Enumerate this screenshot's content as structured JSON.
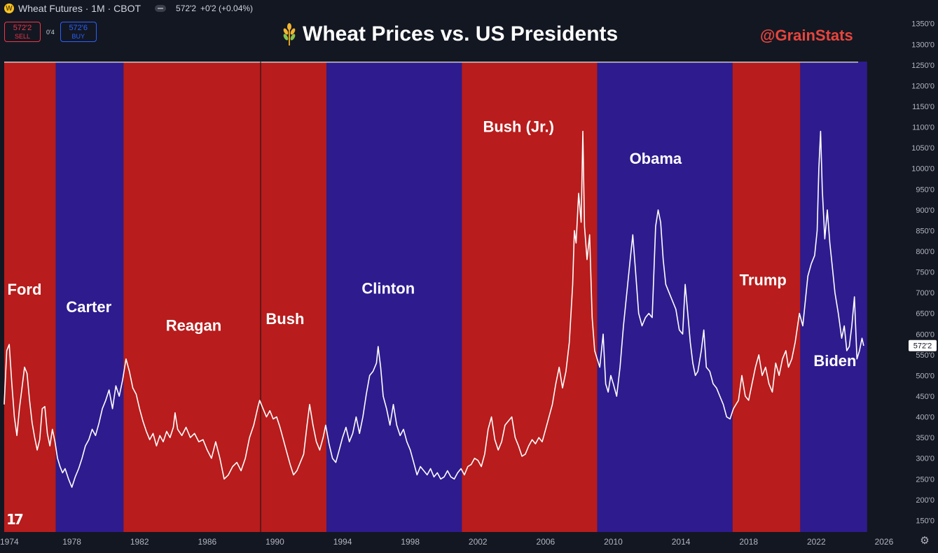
{
  "header": {
    "instrument": "Wheat Futures · 1M · CBOT",
    "coin_glyph": "W",
    "last_price": "572'2",
    "change": "+0'2 (+0.04%)"
  },
  "trade_panel": {
    "sell_price": "572'2",
    "sell_label": "SELL",
    "spread": "0'4",
    "buy_price": "572'6",
    "buy_label": "BUY"
  },
  "watermark": {
    "handle": "@GrainStats",
    "logo": "17"
  },
  "colors": {
    "background": "#131722",
    "republican": "#b81c1c",
    "democrat": "#2e1b8e",
    "price_line": "#ffffff",
    "handle": "#e8453c"
  },
  "chart_data": {
    "type": "line",
    "title": "Wheat Prices vs. US Presidents",
    "title_icon": "wheat-icon",
    "series_name": "Wheat Futures",
    "xlabel": "",
    "ylabel": "",
    "xlim": [
      1974,
      2026.5
    ],
    "ylim": [
      100,
      1380
    ],
    "x_ticks": [
      {
        "value": 1974,
        "label": "1974"
      },
      {
        "value": 1978,
        "label": "1978"
      },
      {
        "value": 1982,
        "label": "1982"
      },
      {
        "value": 1986,
        "label": "1986"
      },
      {
        "value": 1990,
        "label": "1990"
      },
      {
        "value": 1994,
        "label": "1994"
      },
      {
        "value": 1998,
        "label": "1998"
      },
      {
        "value": 2002,
        "label": "2002"
      },
      {
        "value": 2006,
        "label": "2006"
      },
      {
        "value": 2010,
        "label": "2010"
      },
      {
        "value": 2014,
        "label": "2014"
      },
      {
        "value": 2018,
        "label": "2018"
      },
      {
        "value": 2022,
        "label": "2022"
      },
      {
        "value": 2026,
        "label": "2026"
      }
    ],
    "y_ticks": [
      {
        "value": 150,
        "label": "150'0"
      },
      {
        "value": 200,
        "label": "200'0"
      },
      {
        "value": 250,
        "label": "250'0"
      },
      {
        "value": 300,
        "label": "300'0"
      },
      {
        "value": 350,
        "label": "350'0"
      },
      {
        "value": 400,
        "label": "400'0"
      },
      {
        "value": 450,
        "label": "450'0"
      },
      {
        "value": 500,
        "label": "500'0"
      },
      {
        "value": 550,
        "label": "550'0"
      },
      {
        "value": 600,
        "label": "600'0"
      },
      {
        "value": 650,
        "label": "650'0"
      },
      {
        "value": 700,
        "label": "700'0"
      },
      {
        "value": 750,
        "label": "750'0"
      },
      {
        "value": 800,
        "label": "800'0"
      },
      {
        "value": 850,
        "label": "850'0"
      },
      {
        "value": 900,
        "label": "900'0"
      },
      {
        "value": 950,
        "label": "950'0"
      },
      {
        "value": 1000,
        "label": "1000'0"
      },
      {
        "value": 1050,
        "label": "1050'0"
      },
      {
        "value": 1100,
        "label": "1100'0"
      },
      {
        "value": 1150,
        "label": "1150'0"
      },
      {
        "value": 1200,
        "label": "1200'0"
      },
      {
        "value": 1250,
        "label": "1250'0"
      },
      {
        "value": 1300,
        "label": "1300'0"
      },
      {
        "value": 1350,
        "label": "1350'0"
      }
    ],
    "last_value": 572.25,
    "last_label": "572'2",
    "presidents": [
      {
        "name": "Ford",
        "party": "R",
        "start": 1974.0,
        "end": 1977.05,
        "label_x": 1975.2,
        "label_y": 695
      },
      {
        "name": "Carter",
        "party": "D",
        "start": 1977.05,
        "end": 1981.05,
        "label_x": 1979.0,
        "label_y": 653
      },
      {
        "name": "Reagan",
        "party": "R",
        "start": 1981.05,
        "end": 1989.05,
        "label_x": 1985.2,
        "label_y": 608
      },
      {
        "name": "Bush",
        "party": "R",
        "start": 1989.05,
        "end": 1993.05,
        "label_x": 1990.6,
        "label_y": 624
      },
      {
        "name": "Clinton",
        "party": "D",
        "start": 1993.05,
        "end": 2001.05,
        "label_x": 1996.7,
        "label_y": 698
      },
      {
        "name": "Bush (Jr.)",
        "party": "R",
        "start": 2001.05,
        "end": 2009.05,
        "label_x": 2004.4,
        "label_y": 1088
      },
      {
        "name": "Obama",
        "party": "D",
        "start": 2009.05,
        "end": 2017.05,
        "label_x": 2012.5,
        "label_y": 1011
      },
      {
        "name": "Trump",
        "party": "R",
        "start": 2017.05,
        "end": 2021.05,
        "label_x": 2018.85,
        "label_y": 718
      },
      {
        "name": "Biden",
        "party": "D",
        "start": 2021.05,
        "end": 2025.0,
        "label_x": 2023.1,
        "label_y": 523
      }
    ],
    "price": [
      [
        1974.0,
        430
      ],
      [
        1974.15,
        560
      ],
      [
        1974.3,
        575
      ],
      [
        1974.45,
        480
      ],
      [
        1974.6,
        400
      ],
      [
        1974.75,
        355
      ],
      [
        1974.9,
        420
      ],
      [
        1975.05,
        470
      ],
      [
        1975.2,
        520
      ],
      [
        1975.35,
        505
      ],
      [
        1975.5,
        440
      ],
      [
        1975.65,
        385
      ],
      [
        1975.8,
        350
      ],
      [
        1975.95,
        320
      ],
      [
        1976.1,
        345
      ],
      [
        1976.25,
        420
      ],
      [
        1976.4,
        425
      ],
      [
        1976.55,
        360
      ],
      [
        1976.7,
        330
      ],
      [
        1976.85,
        370
      ],
      [
        1977.0,
        340
      ],
      [
        1977.15,
        300
      ],
      [
        1977.3,
        280
      ],
      [
        1977.45,
        265
      ],
      [
        1977.6,
        275
      ],
      [
        1977.8,
        250
      ],
      [
        1978.0,
        230
      ],
      [
        1978.2,
        255
      ],
      [
        1978.4,
        275
      ],
      [
        1978.6,
        300
      ],
      [
        1978.8,
        330
      ],
      [
        1979.0,
        345
      ],
      [
        1979.2,
        370
      ],
      [
        1979.4,
        355
      ],
      [
        1979.6,
        385
      ],
      [
        1979.8,
        420
      ],
      [
        1980.0,
        440
      ],
      [
        1980.2,
        465
      ],
      [
        1980.4,
        420
      ],
      [
        1980.6,
        475
      ],
      [
        1980.8,
        450
      ],
      [
        1981.0,
        490
      ],
      [
        1981.2,
        540
      ],
      [
        1981.4,
        510
      ],
      [
        1981.6,
        470
      ],
      [
        1981.8,
        455
      ],
      [
        1982.0,
        420
      ],
      [
        1982.2,
        390
      ],
      [
        1982.4,
        365
      ],
      [
        1982.6,
        345
      ],
      [
        1982.8,
        360
      ],
      [
        1983.0,
        330
      ],
      [
        1983.2,
        355
      ],
      [
        1983.4,
        340
      ],
      [
        1983.6,
        365
      ],
      [
        1983.8,
        350
      ],
      [
        1984.0,
        375
      ],
      [
        1984.1,
        410
      ],
      [
        1984.25,
        370
      ],
      [
        1984.5,
        355
      ],
      [
        1984.75,
        375
      ],
      [
        1985.0,
        350
      ],
      [
        1985.25,
        360
      ],
      [
        1985.5,
        340
      ],
      [
        1985.75,
        345
      ],
      [
        1986.0,
        320
      ],
      [
        1986.25,
        300
      ],
      [
        1986.5,
        340
      ],
      [
        1986.75,
        300
      ],
      [
        1987.0,
        250
      ],
      [
        1987.25,
        260
      ],
      [
        1987.5,
        280
      ],
      [
        1987.75,
        290
      ],
      [
        1988.0,
        270
      ],
      [
        1988.25,
        300
      ],
      [
        1988.5,
        350
      ],
      [
        1988.75,
        380
      ],
      [
        1989.0,
        425
      ],
      [
        1989.1,
        440
      ],
      [
        1989.3,
        420
      ],
      [
        1989.5,
        400
      ],
      [
        1989.7,
        415
      ],
      [
        1989.9,
        395
      ],
      [
        1990.1,
        400
      ],
      [
        1990.3,
        375
      ],
      [
        1990.5,
        345
      ],
      [
        1990.7,
        315
      ],
      [
        1990.9,
        285
      ],
      [
        1991.1,
        260
      ],
      [
        1991.3,
        270
      ],
      [
        1991.5,
        290
      ],
      [
        1991.7,
        310
      ],
      [
        1991.9,
        380
      ],
      [
        1992.05,
        430
      ],
      [
        1992.25,
        380
      ],
      [
        1992.45,
        340
      ],
      [
        1992.65,
        320
      ],
      [
        1992.85,
        350
      ],
      [
        1993.0,
        380
      ],
      [
        1993.2,
        335
      ],
      [
        1993.4,
        300
      ],
      [
        1993.6,
        290
      ],
      [
        1993.8,
        320
      ],
      [
        1994.0,
        350
      ],
      [
        1994.2,
        375
      ],
      [
        1994.4,
        340
      ],
      [
        1994.6,
        360
      ],
      [
        1994.8,
        400
      ],
      [
        1995.0,
        360
      ],
      [
        1995.2,
        400
      ],
      [
        1995.4,
        455
      ],
      [
        1995.6,
        500
      ],
      [
        1995.8,
        510
      ],
      [
        1996.0,
        530
      ],
      [
        1996.1,
        570
      ],
      [
        1996.25,
        520
      ],
      [
        1996.4,
        450
      ],
      [
        1996.6,
        420
      ],
      [
        1996.8,
        380
      ],
      [
        1997.0,
        430
      ],
      [
        1997.2,
        380
      ],
      [
        1997.4,
        355
      ],
      [
        1997.6,
        370
      ],
      [
        1997.8,
        340
      ],
      [
        1998.0,
        320
      ],
      [
        1998.2,
        290
      ],
      [
        1998.4,
        260
      ],
      [
        1998.6,
        280
      ],
      [
        1998.8,
        270
      ],
      [
        1999.0,
        260
      ],
      [
        1999.2,
        275
      ],
      [
        1999.4,
        255
      ],
      [
        1999.6,
        265
      ],
      [
        1999.8,
        250
      ],
      [
        2000.0,
        255
      ],
      [
        2000.2,
        270
      ],
      [
        2000.4,
        255
      ],
      [
        2000.6,
        250
      ],
      [
        2000.8,
        265
      ],
      [
        2001.0,
        275
      ],
      [
        2001.2,
        260
      ],
      [
        2001.4,
        280
      ],
      [
        2001.6,
        285
      ],
      [
        2001.8,
        300
      ],
      [
        2002.0,
        295
      ],
      [
        2002.2,
        280
      ],
      [
        2002.4,
        310
      ],
      [
        2002.6,
        370
      ],
      [
        2002.8,
        400
      ],
      [
        2003.0,
        345
      ],
      [
        2003.2,
        320
      ],
      [
        2003.4,
        340
      ],
      [
        2003.6,
        380
      ],
      [
        2003.8,
        390
      ],
      [
        2004.0,
        400
      ],
      [
        2004.2,
        350
      ],
      [
        2004.4,
        330
      ],
      [
        2004.6,
        305
      ],
      [
        2004.8,
        310
      ],
      [
        2005.0,
        330
      ],
      [
        2005.2,
        345
      ],
      [
        2005.4,
        335
      ],
      [
        2005.6,
        350
      ],
      [
        2005.8,
        340
      ],
      [
        2006.0,
        370
      ],
      [
        2006.2,
        400
      ],
      [
        2006.4,
        430
      ],
      [
        2006.6,
        480
      ],
      [
        2006.8,
        520
      ],
      [
        2007.0,
        470
      ],
      [
        2007.2,
        510
      ],
      [
        2007.4,
        580
      ],
      [
        2007.6,
        720
      ],
      [
        2007.7,
        850
      ],
      [
        2007.8,
        820
      ],
      [
        2007.95,
        940
      ],
      [
        2008.1,
        870
      ],
      [
        2008.2,
        1090
      ],
      [
        2008.3,
        860
      ],
      [
        2008.45,
        780
      ],
      [
        2008.6,
        840
      ],
      [
        2008.75,
        640
      ],
      [
        2008.9,
        560
      ],
      [
        2009.05,
        540
      ],
      [
        2009.2,
        520
      ],
      [
        2009.4,
        600
      ],
      [
        2009.55,
        480
      ],
      [
        2009.7,
        460
      ],
      [
        2009.85,
        500
      ],
      [
        2010.0,
        480
      ],
      [
        2010.2,
        450
      ],
      [
        2010.4,
        520
      ],
      [
        2010.6,
        620
      ],
      [
        2010.8,
        700
      ],
      [
        2011.0,
        780
      ],
      [
        2011.15,
        840
      ],
      [
        2011.3,
        760
      ],
      [
        2011.5,
        650
      ],
      [
        2011.7,
        620
      ],
      [
        2011.9,
        640
      ],
      [
        2012.1,
        650
      ],
      [
        2012.3,
        640
      ],
      [
        2012.5,
        860
      ],
      [
        2012.65,
        900
      ],
      [
        2012.8,
        870
      ],
      [
        2012.95,
        780
      ],
      [
        2013.1,
        720
      ],
      [
        2013.3,
        700
      ],
      [
        2013.5,
        680
      ],
      [
        2013.7,
        660
      ],
      [
        2013.9,
        610
      ],
      [
        2014.1,
        600
      ],
      [
        2014.25,
        720
      ],
      [
        2014.4,
        650
      ],
      [
        2014.55,
        580
      ],
      [
        2014.7,
        530
      ],
      [
        2014.85,
        500
      ],
      [
        2015.0,
        510
      ],
      [
        2015.2,
        560
      ],
      [
        2015.35,
        610
      ],
      [
        2015.5,
        520
      ],
      [
        2015.7,
        510
      ],
      [
        2015.9,
        480
      ],
      [
        2016.1,
        470
      ],
      [
        2016.3,
        450
      ],
      [
        2016.5,
        430
      ],
      [
        2016.7,
        400
      ],
      [
        2016.9,
        395
      ],
      [
        2017.1,
        420
      ],
      [
        2017.25,
        430
      ],
      [
        2017.4,
        440
      ],
      [
        2017.6,
        500
      ],
      [
        2017.8,
        450
      ],
      [
        2018.0,
        440
      ],
      [
        2018.2,
        480
      ],
      [
        2018.4,
        520
      ],
      [
        2018.6,
        550
      ],
      [
        2018.8,
        500
      ],
      [
        2019.0,
        520
      ],
      [
        2019.2,
        480
      ],
      [
        2019.4,
        460
      ],
      [
        2019.6,
        530
      ],
      [
        2019.8,
        500
      ],
      [
        2020.0,
        540
      ],
      [
        2020.2,
        560
      ],
      [
        2020.35,
        520
      ],
      [
        2020.55,
        540
      ],
      [
        2020.75,
        580
      ],
      [
        2021.0,
        650
      ],
      [
        2021.2,
        620
      ],
      [
        2021.35,
        680
      ],
      [
        2021.5,
        740
      ],
      [
        2021.7,
        770
      ],
      [
        2021.9,
        790
      ],
      [
        2022.05,
        850
      ],
      [
        2022.15,
        1000
      ],
      [
        2022.25,
        1090
      ],
      [
        2022.35,
        950
      ],
      [
        2022.5,
        830
      ],
      [
        2022.65,
        900
      ],
      [
        2022.8,
        820
      ],
      [
        2022.95,
        760
      ],
      [
        2023.1,
        700
      ],
      [
        2023.3,
        650
      ],
      [
        2023.5,
        590
      ],
      [
        2023.65,
        620
      ],
      [
        2023.8,
        560
      ],
      [
        2023.95,
        570
      ],
      [
        2024.1,
        620
      ],
      [
        2024.25,
        690
      ],
      [
        2024.4,
        540
      ],
      [
        2024.55,
        560
      ],
      [
        2024.7,
        590
      ],
      [
        2024.8,
        572
      ]
    ]
  }
}
